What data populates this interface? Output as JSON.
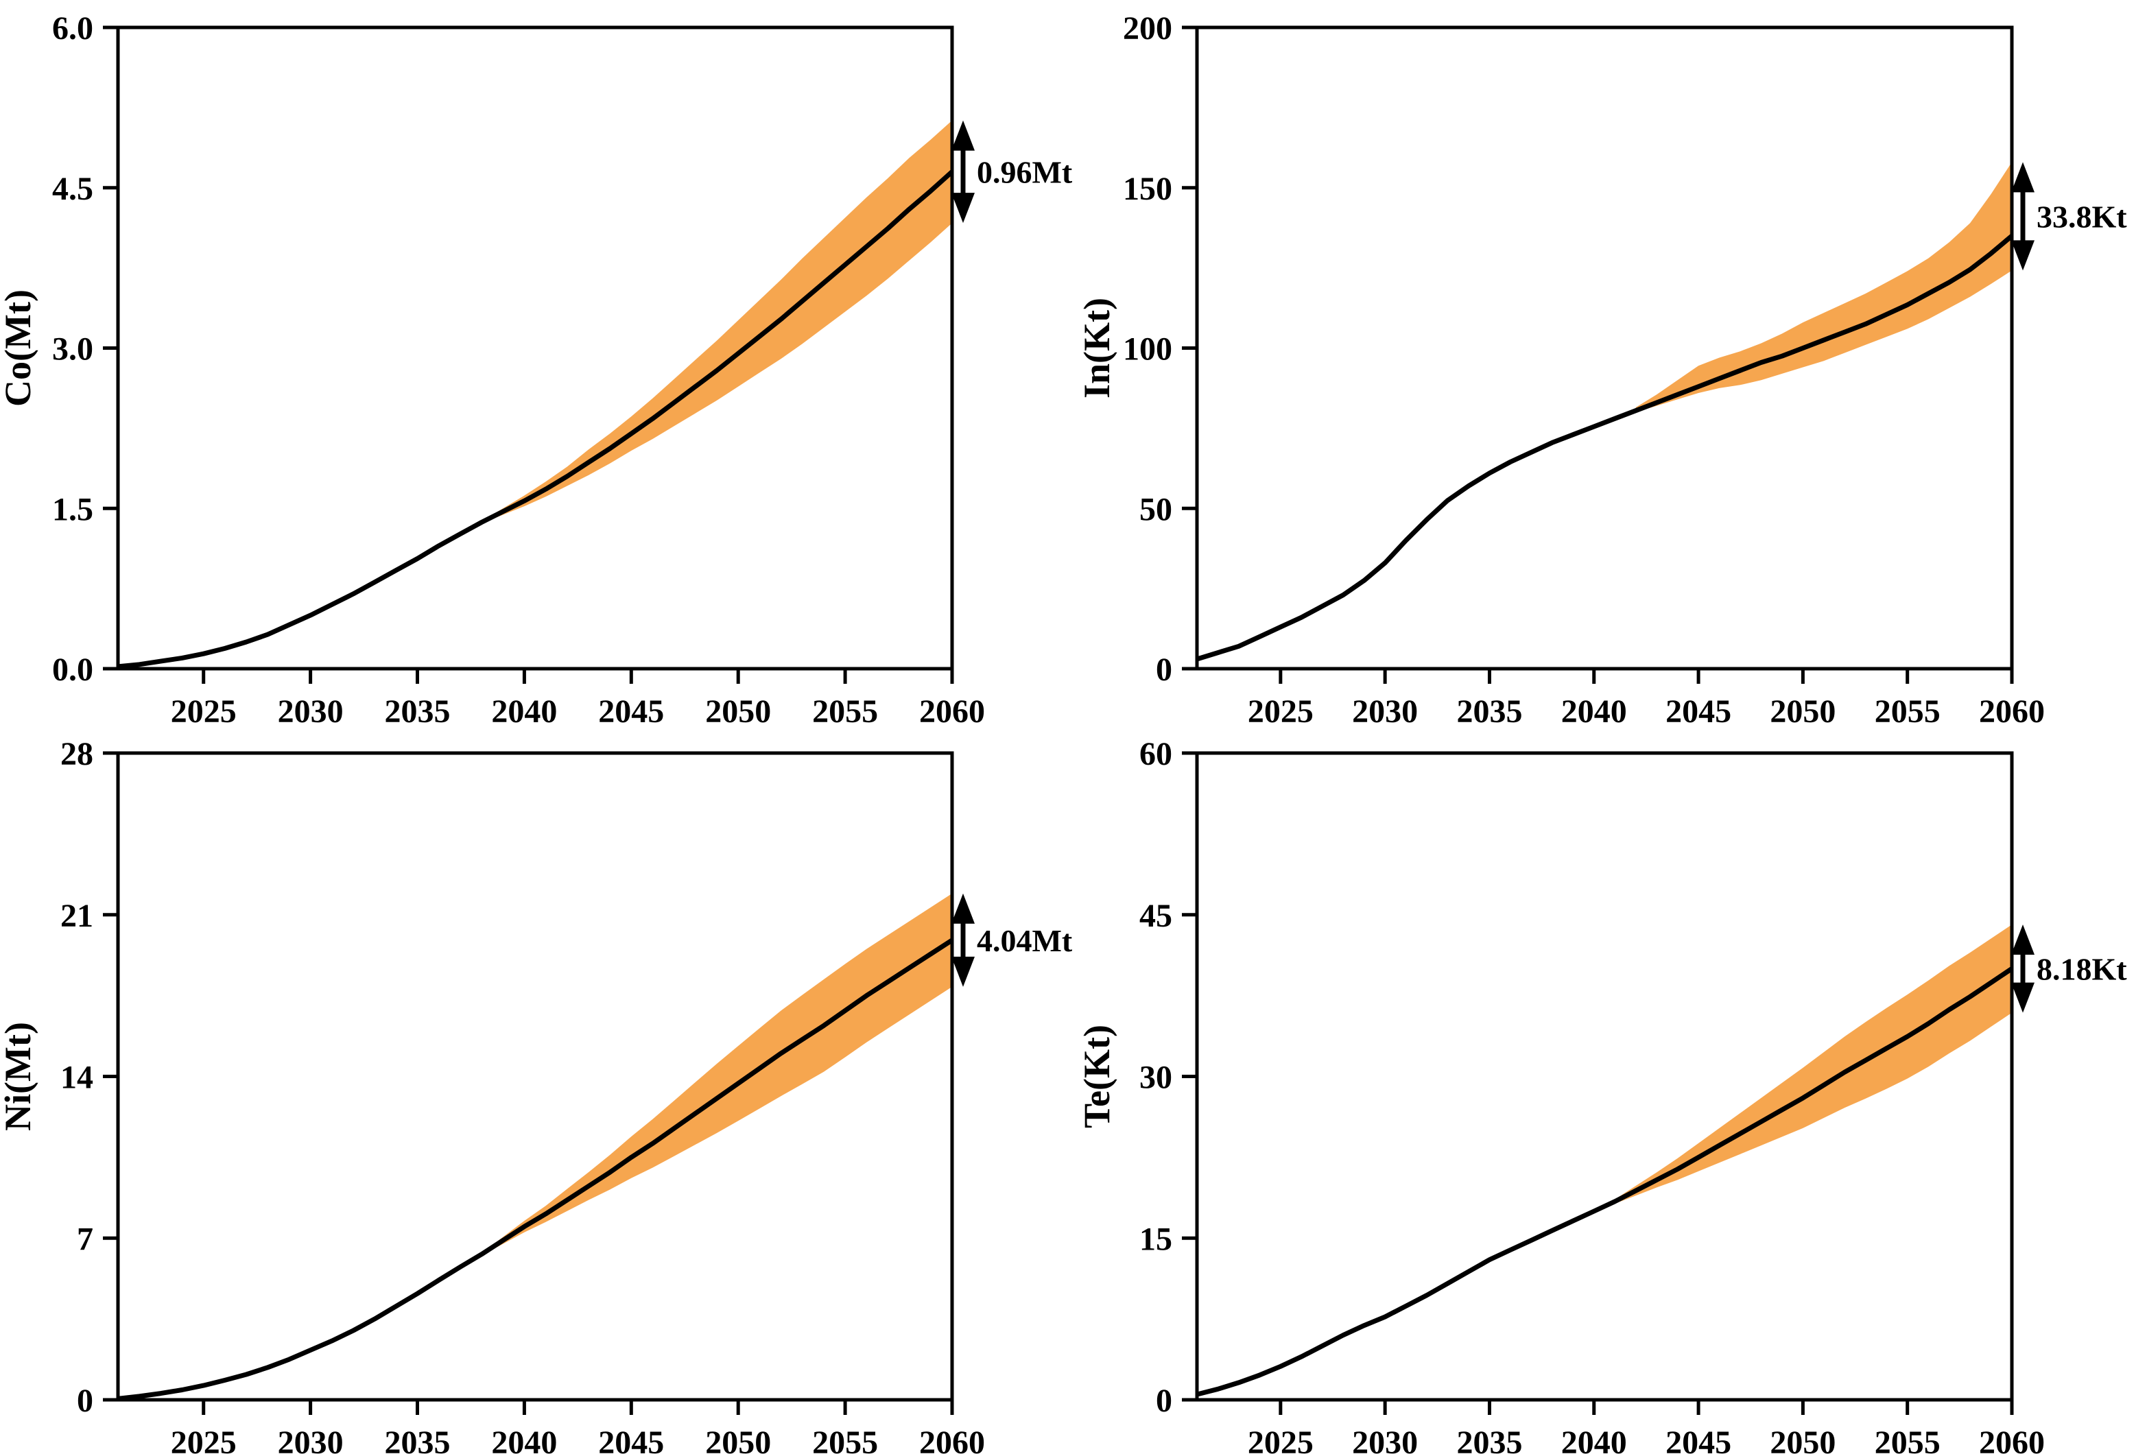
{
  "figure": {
    "background": "#ffffff",
    "band_color": "#F6A64F",
    "line_color": "#000000",
    "frame_color": "#000000",
    "text_color": "#000000"
  },
  "chart_data": [
    {
      "id": "co",
      "type": "line",
      "ylabel": "Co(Mt)",
      "ylim": [
        0,
        6
      ],
      "ytick_values": [
        0,
        1.5,
        3,
        4.5,
        6
      ],
      "ytick_labels": [
        "0.0",
        "1.5",
        "3.0",
        "4.5",
        "6.0"
      ],
      "xlim": [
        2021,
        2060
      ],
      "xticks": [
        2025,
        2030,
        2035,
        2040,
        2045,
        2050,
        2055,
        2060
      ],
      "annotation": "0.96Mt",
      "years_start": 2021,
      "line_values": [
        0.02,
        0.04,
        0.07,
        0.1,
        0.14,
        0.19,
        0.25,
        0.32,
        0.41,
        0.5,
        0.6,
        0.7,
        0.81,
        0.92,
        1.03,
        1.15,
        1.26,
        1.37,
        1.47,
        1.57,
        1.68,
        1.8,
        1.93,
        2.06,
        2.2,
        2.34,
        2.49,
        2.64,
        2.79,
        2.95,
        3.11,
        3.27,
        3.44,
        3.61,
        3.78,
        3.95,
        4.12,
        4.3,
        4.47,
        4.65
      ],
      "band_start": 2038,
      "band_upper": [
        1.38,
        1.5,
        1.62,
        1.75,
        1.89,
        2.05,
        2.2,
        2.36,
        2.53,
        2.71,
        2.89,
        3.07,
        3.26,
        3.45,
        3.64,
        3.84,
        4.03,
        4.22,
        4.41,
        4.59,
        4.78,
        4.95,
        5.13
      ],
      "band_lower": [
        1.36,
        1.44,
        1.52,
        1.61,
        1.71,
        1.81,
        1.92,
        2.04,
        2.15,
        2.27,
        2.39,
        2.51,
        2.64,
        2.77,
        2.9,
        3.04,
        3.19,
        3.34,
        3.49,
        3.65,
        3.82,
        3.99,
        4.17
      ]
    },
    {
      "id": "in",
      "type": "line",
      "ylabel": "In(Kt)",
      "ylim": [
        0,
        200
      ],
      "ytick_values": [
        0,
        50,
        100,
        150,
        200
      ],
      "ytick_labels": [
        "0",
        "50",
        "100",
        "150",
        "200"
      ],
      "xlim": [
        2021,
        2060
      ],
      "xticks": [
        2025,
        2030,
        2035,
        2040,
        2045,
        2050,
        2055,
        2060
      ],
      "annotation": "33.8Kt",
      "years_start": 2021,
      "line_values": [
        3,
        5,
        7,
        10,
        13,
        16,
        19.5,
        23,
        27.5,
        33,
        40,
        46.5,
        52.5,
        57,
        61,
        64.5,
        67.5,
        70.5,
        73,
        75.5,
        78,
        80.5,
        83,
        85.5,
        88,
        90.5,
        93,
        95.5,
        97.5,
        100,
        102.5,
        105,
        107.5,
        110.5,
        113.5,
        117,
        120.5,
        124.5,
        129.5,
        135
      ],
      "band_start": 2042,
      "band_upper": [
        81.5,
        85.5,
        90,
        94.5,
        97,
        99,
        101.5,
        104.5,
        108,
        111,
        114,
        117,
        120.5,
        124,
        128,
        133,
        139,
        148,
        158
      ],
      "band_lower": [
        80,
        82,
        84,
        86,
        87.5,
        88.5,
        90,
        92,
        94,
        96,
        98.5,
        101,
        103.5,
        106,
        109,
        112.5,
        116,
        120,
        124.2
      ]
    },
    {
      "id": "ni",
      "type": "line",
      "ylabel": "Ni(Mt)",
      "ylim": [
        0,
        28
      ],
      "ytick_values": [
        0,
        7,
        14,
        21,
        28
      ],
      "ytick_labels": [
        "0",
        "7",
        "14",
        "21",
        "28"
      ],
      "xlim": [
        2021,
        2060
      ],
      "xticks": [
        2025,
        2030,
        2035,
        2040,
        2045,
        2050,
        2055,
        2060
      ],
      "annotation": "4.04Mt",
      "years_start": 2021,
      "line_values": [
        0.05,
        0.15,
        0.28,
        0.43,
        0.62,
        0.85,
        1.1,
        1.4,
        1.75,
        2.15,
        2.55,
        3.0,
        3.5,
        4.05,
        4.6,
        5.18,
        5.75,
        6.3,
        6.9,
        7.5,
        8.05,
        8.65,
        9.25,
        9.85,
        10.5,
        11.1,
        11.75,
        12.4,
        13.05,
        13.7,
        14.35,
        15.0,
        15.6,
        16.2,
        16.85,
        17.5,
        18.1,
        18.7,
        19.3,
        19.9
      ],
      "band_start": 2038,
      "band_upper": [
        6.35,
        7.05,
        7.75,
        8.4,
        9.13,
        9.85,
        10.6,
        11.4,
        12.15,
        12.95,
        13.75,
        14.55,
        15.32,
        16.09,
        16.85,
        17.53,
        18.2,
        18.87,
        19.52,
        20.12,
        20.72,
        21.32,
        21.92
      ],
      "band_lower": [
        6.25,
        6.75,
        7.25,
        7.7,
        8.17,
        8.65,
        9.1,
        9.6,
        10.05,
        10.55,
        11.05,
        11.55,
        12.08,
        12.61,
        13.15,
        13.67,
        14.2,
        14.83,
        15.48,
        16.08,
        16.68,
        17.28,
        17.88
      ]
    },
    {
      "id": "te",
      "type": "line",
      "ylabel": "Te(Kt)",
      "ylim": [
        0,
        60
      ],
      "ytick_values": [
        0,
        15,
        30,
        45,
        60
      ],
      "ytick_labels": [
        "0",
        "15",
        "30",
        "45",
        "60"
      ],
      "xlim": [
        2021,
        2060
      ],
      "xticks": [
        2025,
        2030,
        2035,
        2040,
        2045,
        2050,
        2055,
        2060
      ],
      "annotation": "8.18Kt",
      "years_start": 2021,
      "line_values": [
        0.5,
        1.0,
        1.6,
        2.3,
        3.1,
        4.0,
        5.0,
        6.0,
        6.9,
        7.7,
        8.7,
        9.7,
        10.8,
        11.9,
        13.0,
        13.9,
        14.8,
        15.7,
        16.6,
        17.5,
        18.4,
        19.4,
        20.4,
        21.4,
        22.5,
        23.6,
        24.7,
        25.8,
        26.9,
        28.0,
        29.2,
        30.4,
        31.5,
        32.6,
        33.7,
        34.9,
        36.2,
        37.4,
        38.7,
        40.0
      ],
      "band_start": 2040,
      "band_upper": [
        17.55,
        18.6,
        19.85,
        21.1,
        22.4,
        23.8,
        25.2,
        26.6,
        28.0,
        29.4,
        30.8,
        32.25,
        33.7,
        35.05,
        36.35,
        37.6,
        38.9,
        40.26,
        41.49,
        42.79,
        44.09
      ],
      "band_lower": [
        17.45,
        18.2,
        18.95,
        19.7,
        20.4,
        21.2,
        22.0,
        22.8,
        23.6,
        24.4,
        25.2,
        26.15,
        27.1,
        27.95,
        28.85,
        29.8,
        30.9,
        32.14,
        33.31,
        34.61,
        35.91
      ]
    }
  ]
}
